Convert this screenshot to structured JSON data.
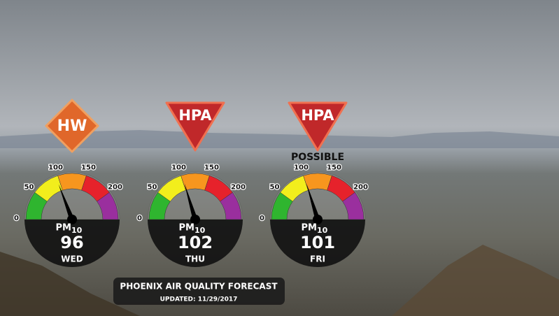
{
  "gauges": [
    {
      "badge": "HW",
      "badge_shape": "diamond",
      "badge_color": "#e0672a",
      "value": 96,
      "unit": "PM",
      "unit_sub": "10",
      "day": "WED"
    },
    {
      "badge": "HPA",
      "badge_shape": "triangle",
      "badge_color": "#c0282a",
      "value": 102,
      "unit": "PM",
      "unit_sub": "10",
      "day": "THU"
    },
    {
      "badge": "HPA",
      "badge_shape": "triangle",
      "badge_color": "#c0282a",
      "note": "POSSIBLE",
      "value": 101,
      "unit": "PM",
      "unit_sub": "10",
      "day": "FRI"
    }
  ],
  "scale": {
    "range": [
      0,
      250
    ],
    "ticks": [
      0,
      50,
      100,
      150,
      200
    ],
    "colors": [
      "#2fb52f",
      "#f2ee1c",
      "#f7961e",
      "#e6222b",
      "#9a2f9e"
    ]
  },
  "footer": {
    "title": "PHOENIX AIR QUALITY FORECAST",
    "updated": "UPDATED: 11/29/2017"
  }
}
